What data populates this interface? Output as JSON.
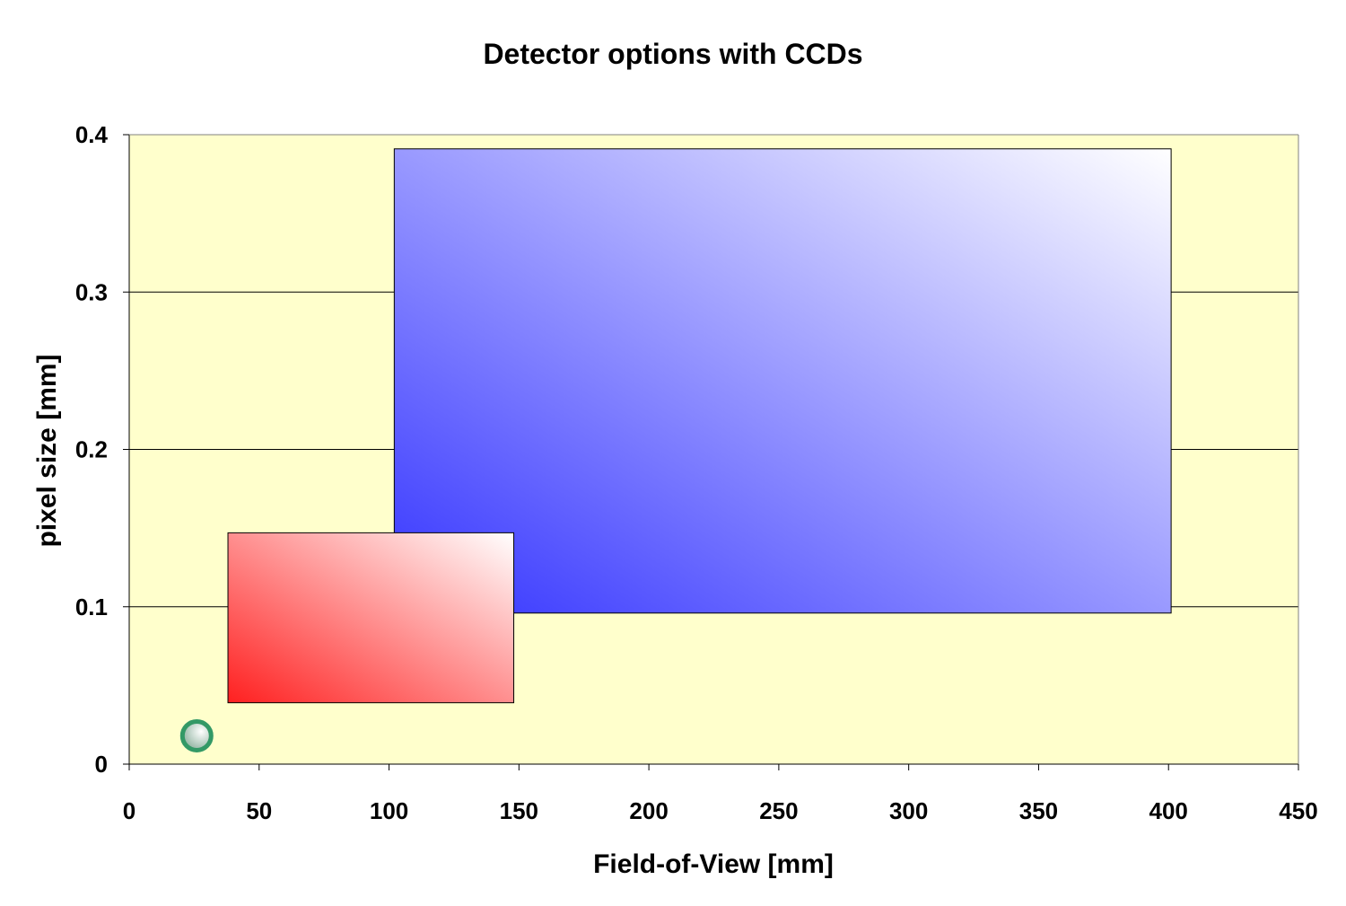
{
  "chart_data": {
    "type": "scatter",
    "title": "Detector options with CCDs",
    "xlabel": "Field-of-View [mm]",
    "ylabel": "pixel size [mm]",
    "xlim": [
      0,
      450
    ],
    "ylim": [
      0,
      0.4
    ],
    "xticks": [
      "0",
      "50",
      "100",
      "150",
      "200",
      "250",
      "300",
      "350",
      "400",
      "450"
    ],
    "yticks": [
      "0",
      "0.1",
      "0.2",
      "0.3",
      "0.4"
    ],
    "grid": "horizontal",
    "plot_background": "#FFFFCC",
    "regions": [
      {
        "x_min": 102,
        "x_max": 401,
        "y_min": 0.096,
        "y_max": 0.391,
        "gradient_from": "#3333FF",
        "gradient_to": "#FFFFFF"
      },
      {
        "x_min": 38,
        "x_max": 148,
        "y_min": 0.039,
        "y_max": 0.147,
        "gradient_from": "#FF2020",
        "gradient_to": "#FFFFFF"
      }
    ],
    "points": [
      {
        "x": 26,
        "y": 0.018,
        "color": "#339966"
      }
    ]
  }
}
